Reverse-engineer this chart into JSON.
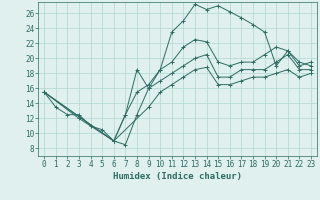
{
  "title": "",
  "xlabel": "Humidex (Indice chaleur)",
  "bg_color": "#dff0ee",
  "line_color": "#2d6b63",
  "grid_color": "#b0d8d0",
  "xlim": [
    -0.5,
    23.5
  ],
  "ylim": [
    7,
    27.5
  ],
  "xticks": [
    0,
    1,
    2,
    3,
    4,
    5,
    6,
    7,
    8,
    9,
    10,
    11,
    12,
    13,
    14,
    15,
    16,
    17,
    18,
    19,
    20,
    21,
    22,
    23
  ],
  "yticks": [
    8,
    10,
    12,
    14,
    16,
    18,
    20,
    22,
    24,
    26
  ],
  "curve1_x": [
    0,
    1,
    2,
    3,
    4,
    5,
    6,
    7,
    8,
    9,
    10,
    11,
    12,
    13,
    14,
    15,
    16,
    17,
    18,
    19,
    20,
    21,
    22,
    23
  ],
  "curve1_y": [
    15.5,
    13.5,
    12.5,
    12.5,
    11.0,
    10.5,
    9.0,
    8.5,
    12.5,
    16.0,
    18.5,
    23.5,
    25.0,
    27.2,
    26.5,
    27.0,
    26.2,
    25.4,
    24.5,
    23.5,
    19.0,
    21.0,
    19.5,
    19.0
  ],
  "curve2_x": [
    0,
    3,
    6,
    7,
    8,
    9,
    10,
    11,
    12,
    13,
    14,
    15,
    16,
    17,
    18,
    19,
    20,
    21,
    22,
    23
  ],
  "curve2_y": [
    15.5,
    12.0,
    9.0,
    12.5,
    15.5,
    16.5,
    18.5,
    19.5,
    21.5,
    22.5,
    22.2,
    19.5,
    19.0,
    19.5,
    19.5,
    20.5,
    21.5,
    21.0,
    19.0,
    19.5
  ],
  "curve3_x": [
    0,
    6,
    7,
    8,
    9,
    10,
    11,
    12,
    13,
    14,
    15,
    16,
    17,
    18,
    19,
    20,
    21,
    22,
    23
  ],
  "curve3_y": [
    15.5,
    9.0,
    12.5,
    18.5,
    16.0,
    17.0,
    18.0,
    19.0,
    20.0,
    20.5,
    17.5,
    17.5,
    18.5,
    18.5,
    18.5,
    19.5,
    20.5,
    18.5,
    18.5
  ],
  "curve4_x": [
    0,
    6,
    9,
    10,
    11,
    12,
    13,
    14,
    15,
    16,
    17,
    18,
    19,
    20,
    21,
    22,
    23
  ],
  "curve4_y": [
    15.5,
    9.0,
    13.5,
    15.5,
    16.5,
    17.5,
    18.5,
    18.8,
    16.5,
    16.5,
    17.0,
    17.5,
    17.5,
    18.0,
    18.5,
    17.5,
    18.0
  ]
}
